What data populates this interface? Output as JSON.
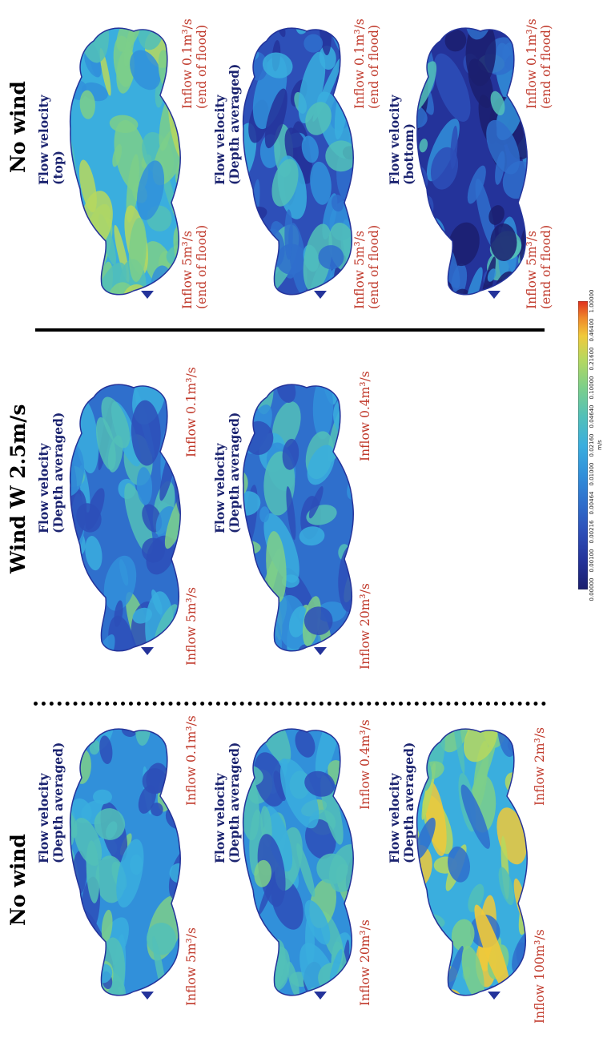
{
  "headings": {
    "left": "No wind",
    "middle": "Wind W 2.5m/s",
    "right": "No wind"
  },
  "panels": {
    "a1": {
      "label1": "Flow velocity",
      "label2": "(Depth averaged)",
      "inflow_in": "Inflow 5m³/s",
      "inflow_out": "Inflow 0.1m³/s"
    },
    "a2": {
      "label1": "Flow velocity",
      "label2": "(Depth averaged)",
      "inflow_in": "Inflow 20m³/s",
      "inflow_out": "Inflow 0.4m³/s"
    },
    "a3": {
      "label1": "Flow velocity",
      "label2": "(Depth averaged)",
      "inflow_in": "Inflow 100m³/s",
      "inflow_out": "Inflow 2m³/s"
    },
    "b1": {
      "label1": "Flow velocity",
      "label2": "(Depth averaged)",
      "inflow_in": "Inflow 5m³/s",
      "inflow_out": "Inflow 0.1m³/s"
    },
    "b2": {
      "label1": "Flow velocity",
      "label2": "(Depth averaged)",
      "inflow_in": "Inflow 20m³/s",
      "inflow_out": "Inflow 0.4m³/s"
    },
    "c1": {
      "label1": "Flow velocity",
      "label2": "(top)",
      "inflow_in_1": "Inflow 5m³/s",
      "inflow_in_2": "(end of flood)",
      "inflow_out_1": "Inflow 0.1m³/s",
      "inflow_out_2": "(end of flood)"
    },
    "c2": {
      "label1": "Flow velocity",
      "label2": "(Depth averaged)",
      "inflow_in_1": "Inflow 5m³/s",
      "inflow_in_2": "(end of flood)",
      "inflow_out_1": "Inflow 0.1m³/s",
      "inflow_out_2": "(end of flood)"
    },
    "c3": {
      "label1": "Flow velocity",
      "label2": "(bottom)",
      "inflow_in_1": "Inflow 5m³/s",
      "inflow_in_2": "(end of flood)",
      "inflow_out_1": "Inflow 0.1m³/s",
      "inflow_out_2": "(end of flood)"
    }
  },
  "colorbar": {
    "ticks": [
      "0.00000",
      "0.00100",
      "0.00216",
      "0.00464",
      "0.01000",
      "0.02160",
      "0.04640",
      "0.10000",
      "0.21600",
      "0.46400",
      "1.00000"
    ],
    "unit": "m/s",
    "colors": [
      "#1b1f6e",
      "#24339a",
      "#2d4fb8",
      "#2f6fcc",
      "#3190da",
      "#3aaede",
      "#52c0b8",
      "#7ccf8a",
      "#b7d85e",
      "#f0c93a",
      "#ef8a2a",
      "#e0301e"
    ]
  }
}
